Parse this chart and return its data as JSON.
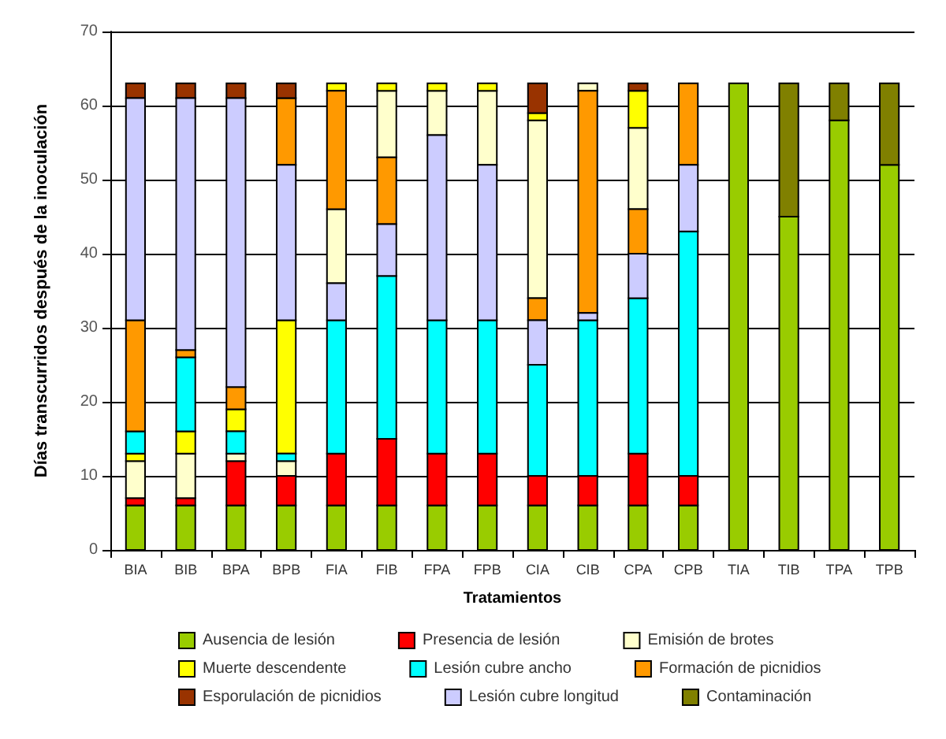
{
  "chart_data": {
    "type": "bar",
    "xlabel": "Tratamientos",
    "ylabel": "Días transcurridos después de la inoculación",
    "categories": [
      "BIA",
      "BIB",
      "BPA",
      "BPB",
      "FIA",
      "FIB",
      "FPA",
      "FPB",
      "CIA",
      "CIB",
      "CPA",
      "CPB",
      "TIA",
      "TIB",
      "TPA",
      "TPB"
    ],
    "series": [
      {
        "name": "Ausencia de lesión",
        "color": "#99cc00",
        "base": [
          0,
          0,
          0,
          0,
          0,
          0,
          0,
          0,
          0,
          0,
          0,
          0,
          0,
          0,
          0,
          0
        ],
        "values": [
          6,
          6,
          6,
          6,
          6,
          6,
          6,
          6,
          6,
          6,
          6,
          6,
          63,
          45,
          58,
          52
        ]
      },
      {
        "name": "Presencia de lesión",
        "color": "#ff0000",
        "base": [
          6,
          6,
          6,
          6,
          6,
          6,
          6,
          6,
          6,
          6,
          6,
          6,
          null,
          null,
          null,
          null
        ],
        "values": [
          1,
          1,
          6,
          4,
          7,
          9,
          7,
          7,
          4,
          4,
          7,
          4,
          null,
          null,
          null,
          null
        ]
      },
      {
        "name": "Emisión de brotes",
        "color": "#ffffcc",
        "base": [
          7,
          7,
          12,
          10,
          36,
          53,
          56,
          52,
          34,
          62,
          46,
          null,
          null,
          null,
          null,
          null
        ],
        "values": [
          5,
          6,
          1,
          2,
          10,
          9,
          6,
          10,
          24,
          1,
          11,
          null,
          null,
          null,
          null,
          null
        ]
      },
      {
        "name": "Muerte descendente",
        "color": "#ffff00",
        "base": [
          12,
          13,
          16,
          13,
          62,
          62,
          62,
          62,
          58,
          null,
          57,
          null,
          null,
          null,
          null,
          null
        ],
        "values": [
          1,
          3,
          3,
          18,
          1,
          1,
          1,
          1,
          1,
          null,
          5,
          null,
          null,
          null,
          null,
          null
        ]
      },
      {
        "name": "Lesión cubre ancho",
        "color": "#00ffff",
        "base": [
          13,
          16,
          13,
          12,
          13,
          15,
          13,
          13,
          10,
          10,
          13,
          10,
          null,
          null,
          null,
          null
        ],
        "values": [
          3,
          10,
          3,
          1,
          18,
          22,
          18,
          18,
          15,
          21,
          21,
          33,
          null,
          null,
          null,
          null
        ]
      },
      {
        "name": "Formación de picnidios",
        "color": "#ff9900",
        "base": [
          16,
          26,
          19,
          52,
          46,
          44,
          null,
          null,
          31,
          32,
          40,
          52,
          null,
          null,
          null,
          null
        ],
        "values": [
          15,
          1,
          3,
          9,
          16,
          9,
          null,
          null,
          3,
          30,
          6,
          11,
          null,
          null,
          null,
          null
        ]
      },
      {
        "name": "Esporulación de picnidios",
        "color": "#993300",
        "base": [
          61,
          61,
          61,
          61,
          null,
          null,
          null,
          null,
          59,
          null,
          62,
          null,
          null,
          null,
          null,
          null
        ],
        "values": [
          2,
          2,
          2,
          2,
          null,
          null,
          null,
          null,
          4,
          null,
          1,
          null,
          null,
          null,
          null,
          null
        ]
      },
      {
        "name": "Lesión cubre longitud",
        "color": "#ccccff",
        "base": [
          31,
          27,
          22,
          31,
          31,
          37,
          31,
          31,
          25,
          31,
          34,
          43,
          null,
          null,
          null,
          null
        ],
        "values": [
          30,
          34,
          39,
          21,
          5,
          7,
          25,
          21,
          6,
          1,
          6,
          9,
          null,
          null,
          null,
          null
        ]
      },
      {
        "name": "Contaminación",
        "color": "#808000",
        "base": [
          null,
          null,
          null,
          null,
          null,
          null,
          null,
          null,
          null,
          null,
          null,
          null,
          null,
          45,
          58,
          52
        ],
        "values": [
          null,
          null,
          null,
          null,
          null,
          null,
          null,
          null,
          null,
          null,
          null,
          null,
          null,
          18,
          5,
          11
        ]
      }
    ],
    "ylim": [
      0,
      70
    ],
    "yticks": [
      0,
      10,
      20,
      30,
      40,
      50,
      60,
      70
    ],
    "grid": "y",
    "legend": "bottom"
  }
}
